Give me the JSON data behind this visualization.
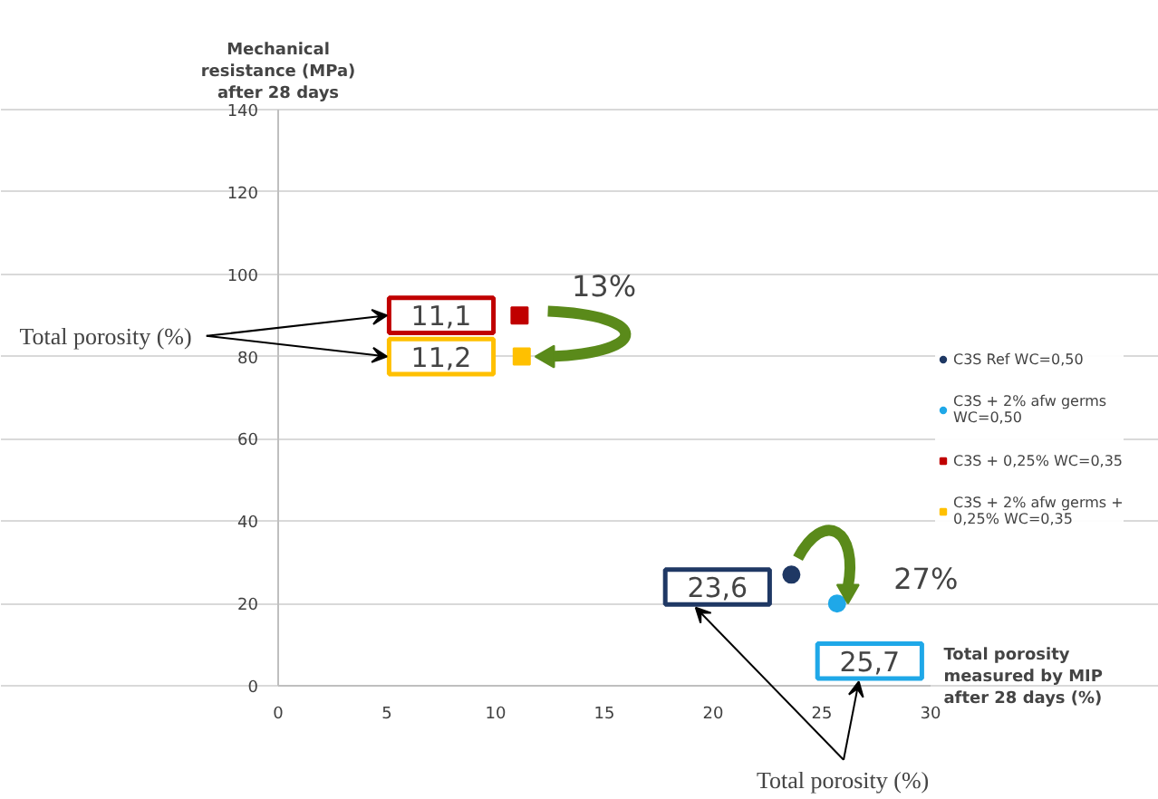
{
  "chart_data": {
    "type": "scatter",
    "xlabel": "Total porosity measured by MIP after 28 days (%)",
    "ylabel": "Mechanical resistance (MPa) after 28 days",
    "xlim": [
      0,
      30
    ],
    "xticks": [
      0,
      5,
      10,
      15,
      20,
      25,
      30
    ],
    "ylim": [
      0,
      140
    ],
    "yticks": [
      0,
      20,
      40,
      60,
      80,
      100,
      120,
      140
    ],
    "grid": "y",
    "legend": "right",
    "series": [
      {
        "name": "C3S Ref WC=0,50",
        "color": "#1f3864",
        "marker": "circle",
        "x": [
          23.6
        ],
        "values": [
          27
        ]
      },
      {
        "name": "C3S + 2% afw germs WC=0,50",
        "color": "#1fa8e8",
        "marker": "circle",
        "x": [
          25.7
        ],
        "values": [
          20
        ]
      },
      {
        "name": "C3S + 0,25% WC=0,35",
        "color": "#c00000",
        "marker": "square",
        "x": [
          11.1
        ],
        "values": [
          90
        ]
      },
      {
        "name": "C3S + 2% afw germs + 0,25% WC=0,35",
        "color": "#ffc000",
        "marker": "square",
        "x": [
          11.2
        ],
        "values": [
          80
        ]
      }
    ],
    "annotations": [
      {
        "text": "23,6",
        "x": 23.6,
        "y": 27
      },
      {
        "text": "25,7",
        "x": 25.7,
        "y": 20
      },
      {
        "text": "11,1",
        "x": 11.1,
        "y": 90
      },
      {
        "text": "11,2",
        "x": 11.2,
        "y": 80
      },
      "13%",
      "27%",
      "Total porosity (%)",
      "Total porosity (%)"
    ]
  }
}
